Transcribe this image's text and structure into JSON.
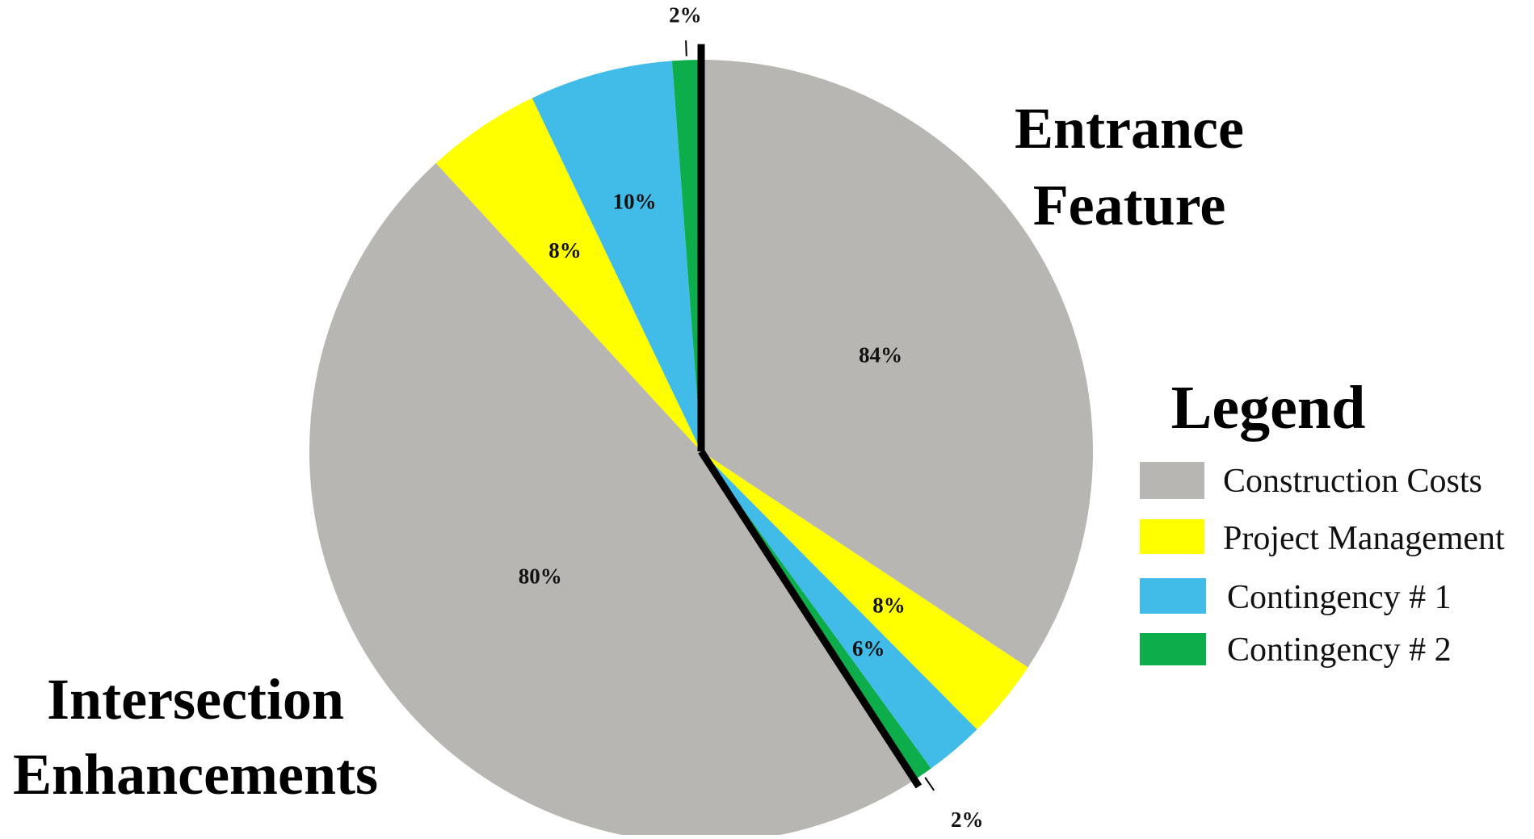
{
  "chart_data": {
    "type": "pie",
    "title": "",
    "legend": {
      "title": "Legend",
      "placement": "right",
      "entries": [
        {
          "label": "Construction Costs",
          "color": "#b8b6b2"
        },
        {
          "label": "Project Management",
          "color": "#ffff00"
        },
        {
          "label": "Contingency # 1",
          "color": "#41bbe8"
        },
        {
          "label": "Contingency # 2",
          "color": "#0cad4a"
        }
      ]
    },
    "groups": [
      {
        "name": "Entrance Feature",
        "name_lines": [
          "Entrance",
          "Feature"
        ],
        "slices": [
          {
            "category": "Construction Costs",
            "value": 84,
            "label": "84%"
          },
          {
            "category": "Project Management",
            "value": 8,
            "label": "8%"
          },
          {
            "category": "Contingency # 1",
            "value": 6,
            "label": "6%"
          },
          {
            "category": "Contingency # 2",
            "value": 2,
            "label": "2%"
          }
        ]
      },
      {
        "name": "Intersection Enhancements",
        "name_lines": [
          "Intersection",
          "Enhancements"
        ],
        "slices": [
          {
            "category": "Construction Costs",
            "value": 80,
            "label": "80%"
          },
          {
            "category": "Project Management",
            "value": 8,
            "label": "8%"
          },
          {
            "category": "Contingency # 1",
            "value": 10,
            "label": "10%"
          },
          {
            "category": "Contingency # 2",
            "value": 2,
            "label": "2%"
          }
        ]
      }
    ]
  }
}
